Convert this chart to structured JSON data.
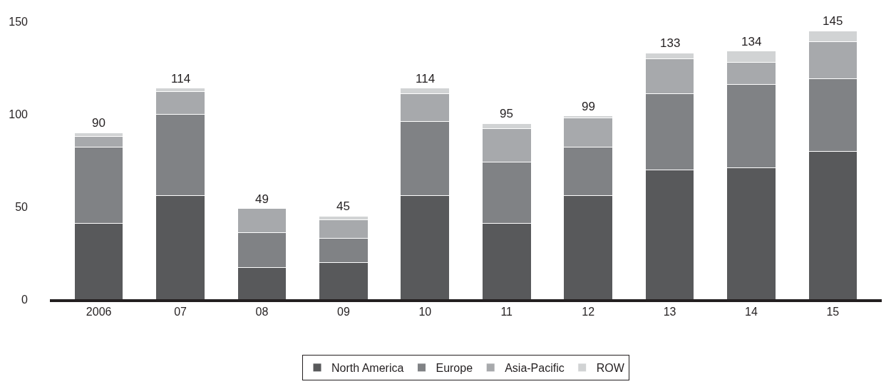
{
  "chart_data": {
    "type": "bar",
    "stacked": true,
    "categories": [
      "2006",
      "07",
      "08",
      "09",
      "10",
      "11",
      "12",
      "13",
      "14",
      "15"
    ],
    "series": [
      {
        "name": "North America",
        "color": "#58595b",
        "values": [
          41,
          56,
          17,
          20,
          56,
          41,
          56,
          70,
          71,
          80
        ]
      },
      {
        "name": "Europe",
        "color": "#808285",
        "values": [
          41,
          44,
          19,
          13,
          40,
          33,
          26,
          41,
          45,
          39
        ]
      },
      {
        "name": "Asia-Pacific",
        "color": "#a7a9ac",
        "values": [
          6,
          12,
          13,
          10,
          15,
          18,
          16,
          19,
          12,
          20
        ]
      },
      {
        "name": "ROW",
        "color": "#d1d3d4",
        "values": [
          2,
          2,
          null,
          2,
          3,
          3,
          1,
          3,
          6,
          6
        ]
      }
    ],
    "totals": [
      "90",
      "114",
      "49",
      "45",
      "114",
      "95",
      "99",
      "133",
      "134",
      "145"
    ],
    "ylim": [
      0,
      150
    ],
    "yticks": [
      0,
      50,
      100,
      150
    ],
    "legend": "bottom"
  }
}
